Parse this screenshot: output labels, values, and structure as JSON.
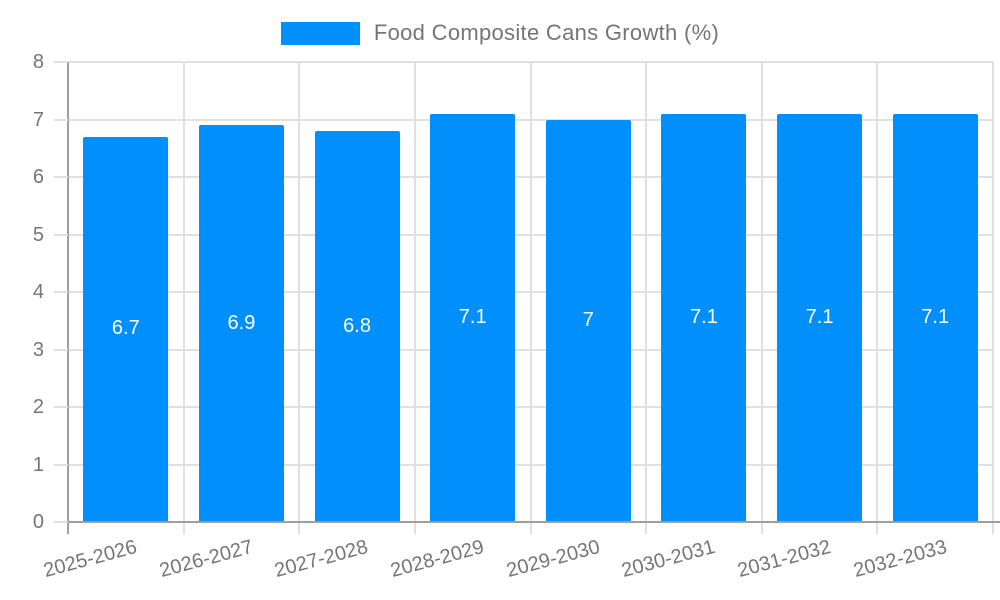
{
  "legend": {
    "position": "top",
    "items": [
      {
        "label": "Food Composite Cans Growth (%)",
        "swatch_color": "#008FFB"
      }
    ]
  },
  "chart_data": {
    "type": "bar",
    "title": "Food Composite Cans Growth (%)",
    "categories": [
      "2025-2026",
      "2026-2027",
      "2027-2028",
      "2028-2029",
      "2029-2030",
      "2030-2031",
      "2031-2032",
      "2032-2033"
    ],
    "values": [
      6.7,
      6.9,
      6.8,
      7.1,
      7,
      7.1,
      7.1,
      7.1
    ],
    "value_labels": [
      "6.7",
      "6.9",
      "6.8",
      "7.1",
      "7",
      "7.1",
      "7.1",
      "7.1"
    ],
    "xlabel": "",
    "ylabel": "",
    "ylim": [
      0,
      8
    ],
    "y_ticks": [
      0,
      1,
      2,
      3,
      4,
      5,
      6,
      7,
      8
    ],
    "grid": true,
    "legend_position": "top",
    "x_label_rotation_deg": -15,
    "colors": {
      "bar": "#008FFB",
      "value_label": "#FFFFFF",
      "axis_text": "#757575",
      "axis_line": "#9E9E9E",
      "gridline": "#E0E0E0",
      "legend_text": "#757575",
      "background": "#FFFFFF"
    }
  }
}
